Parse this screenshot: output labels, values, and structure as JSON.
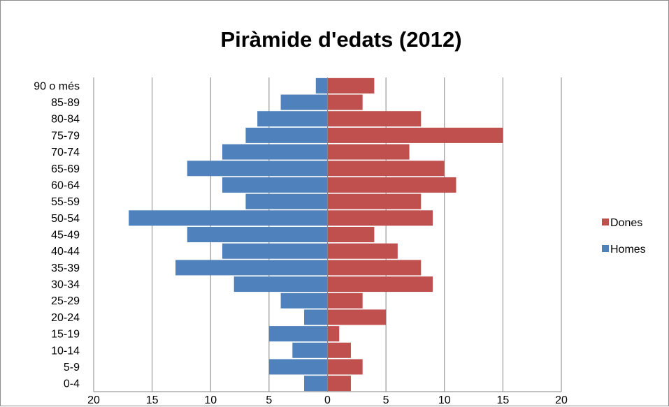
{
  "chart_data": {
    "type": "bar",
    "orientation": "horizontal",
    "title": "Piràmide d'edats (2012)",
    "categories": [
      "0-4",
      "5-9",
      "10-14",
      "15-19",
      "20-24",
      "25-29",
      "30-34",
      "35-39",
      "40-44",
      "45-49",
      "50-54",
      "55-59",
      "60-64",
      "65-69",
      "70-74",
      "75-79",
      "80-84",
      "85-89",
      "90 o més"
    ],
    "series": [
      {
        "name": "Homes",
        "color": "#4f81bd",
        "direction": "left",
        "values": [
          2,
          5,
          3,
          5,
          2,
          4,
          8,
          13,
          9,
          12,
          17,
          7,
          9,
          12,
          9,
          7,
          6,
          4,
          1
        ]
      },
      {
        "name": "Dones",
        "color": "#c0504d",
        "direction": "right",
        "values": [
          2,
          3,
          2,
          1,
          5,
          3,
          9,
          8,
          6,
          4,
          9,
          8,
          11,
          10,
          7,
          15,
          8,
          3,
          4
        ]
      }
    ],
    "x_ticks": [
      -20,
      -15,
      -10,
      -5,
      0,
      5,
      10,
      15,
      20
    ],
    "x_tick_labels": [
      "20",
      "15",
      "10",
      "5",
      "0",
      "5",
      "10",
      "15",
      "20"
    ],
    "xlim": [
      -20,
      20
    ],
    "grid": "vertical",
    "grid_color": "#868686",
    "legend": {
      "placement": "right",
      "entries": [
        "Dones",
        "Homes"
      ]
    }
  }
}
